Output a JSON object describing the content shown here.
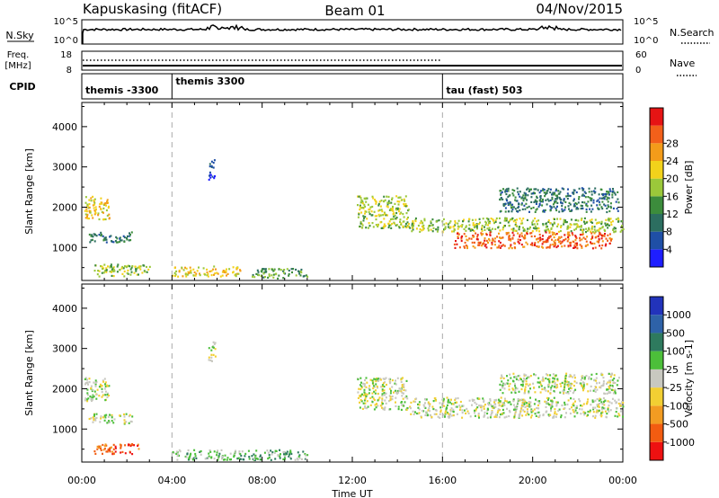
{
  "header": {
    "station": "Kapuskasing (fitACF)",
    "beam": "Beam 01",
    "date": "04/Nov/2015"
  },
  "panels": {
    "nsky": {
      "left_label": "N.Sky",
      "left_ticks": [
        "10^5",
        "10^0"
      ],
      "right_ticks": [
        "10^5",
        "10^0"
      ],
      "right_label": "N.Search"
    },
    "freq": {
      "left_label_line1": "Freq.",
      "left_label_line2": "[MHz]",
      "left_ticks": [
        "18",
        "8"
      ],
      "right_ticks": [
        "60",
        "0"
      ],
      "right_label": "Nave"
    },
    "cpid": {
      "label": "CPID",
      "segments": [
        {
          "name": "themis -3300",
          "start_h": 0,
          "end_h": 4
        },
        {
          "name": "themis 3300",
          "start_h": 4,
          "end_h": 16
        },
        {
          "name": "tau (fast) 503",
          "start_h": 16,
          "end_h": 24
        }
      ]
    }
  },
  "colors": {
    "power": [
      "#1e1eff",
      "#1f4fa6",
      "#2c6e60",
      "#3c8c3c",
      "#9bc83a",
      "#f2d21b",
      "#f39c1a",
      "#f2601a",
      "#e61414"
    ],
    "velocity": [
      "#ee1111",
      "#f25c11",
      "#f29c22",
      "#f2cf33",
      "#c8c8c0",
      "#4cbf3a",
      "#2e7a5e",
      "#2e62a8",
      "#2233bb"
    ]
  },
  "chart_data": [
    {
      "type": "heatmap",
      "title": "Power",
      "xlabel": "Time UT",
      "ylabel": "Slant Range [km]",
      "xlim": [
        0,
        24
      ],
      "ylim": [
        180,
        4600
      ],
      "x_ticks": [
        "00:00",
        "04:00",
        "08:00",
        "12:00",
        "16:00",
        "20:00",
        "00:00"
      ],
      "y_ticks": [
        "1000",
        "2000",
        "3000",
        "4000"
      ],
      "colorbar_label": "Power [dB]",
      "colorbar_ticks": [
        "4",
        "8",
        "12",
        "16",
        "20",
        "24",
        "28"
      ],
      "regions": [
        {
          "t": [
            0.1,
            1.2
          ],
          "r": [
            1700,
            2300
          ],
          "level": 5
        },
        {
          "t": [
            0.3,
            2.2
          ],
          "r": [
            1150,
            1400
          ],
          "level": 2
        },
        {
          "t": [
            0.5,
            3.0
          ],
          "r": [
            300,
            600
          ],
          "level": 4
        },
        {
          "t": [
            4.0,
            7.0
          ],
          "r": [
            300,
            550
          ],
          "level": 5
        },
        {
          "t": [
            7.5,
            10.0
          ],
          "r": [
            250,
            500
          ],
          "level": 3
        },
        {
          "t": [
            5.6,
            5.9
          ],
          "r": [
            2700,
            3200
          ],
          "level": 1
        },
        {
          "t": [
            12.2,
            14.5
          ],
          "r": [
            1500,
            2300
          ],
          "level": 4
        },
        {
          "t": [
            14.5,
            24.0
          ],
          "r": [
            1400,
            1750
          ],
          "level": 4
        },
        {
          "t": [
            16.5,
            23.5
          ],
          "r": [
            1000,
            1400
          ],
          "level": 7
        },
        {
          "t": [
            18.5,
            23.8
          ],
          "r": [
            1900,
            2500
          ],
          "level": 2
        }
      ]
    },
    {
      "type": "heatmap",
      "title": "Velocity",
      "xlabel": "Time UT",
      "ylabel": "Slant Range [km]",
      "xlim": [
        0,
        24
      ],
      "ylim": [
        180,
        4600
      ],
      "x_ticks": [
        "00:00",
        "04:00",
        "08:00",
        "12:00",
        "16:00",
        "20:00",
        "00:00"
      ],
      "y_ticks": [
        "1000",
        "2000",
        "3000",
        "4000"
      ],
      "colorbar_label": "Velocity [m s^-1]",
      "colorbar_ticks": [
        "1000",
        "500",
        "100",
        "25",
        "-25",
        "-100",
        "-500",
        "-1000"
      ],
      "regions": [
        {
          "t": [
            0.1,
            1.2
          ],
          "r": [
            1700,
            2300
          ],
          "level": 4
        },
        {
          "t": [
            0.5,
            2.5
          ],
          "r": [
            400,
            650
          ],
          "level": 1
        },
        {
          "t": [
            0.3,
            2.2
          ],
          "r": [
            1150,
            1400
          ],
          "level": 4
        },
        {
          "t": [
            4.0,
            10.0
          ],
          "r": [
            250,
            500
          ],
          "level": 5
        },
        {
          "t": [
            5.6,
            5.9
          ],
          "r": [
            2700,
            3200
          ],
          "level": 4
        },
        {
          "t": [
            12.2,
            14.5
          ],
          "r": [
            1500,
            2300
          ],
          "level": 4
        },
        {
          "t": [
            14.5,
            24.0
          ],
          "r": [
            1300,
            1800
          ],
          "level": 4
        },
        {
          "t": [
            18.5,
            23.8
          ],
          "r": [
            1900,
            2400
          ],
          "level": 4
        }
      ]
    }
  ]
}
